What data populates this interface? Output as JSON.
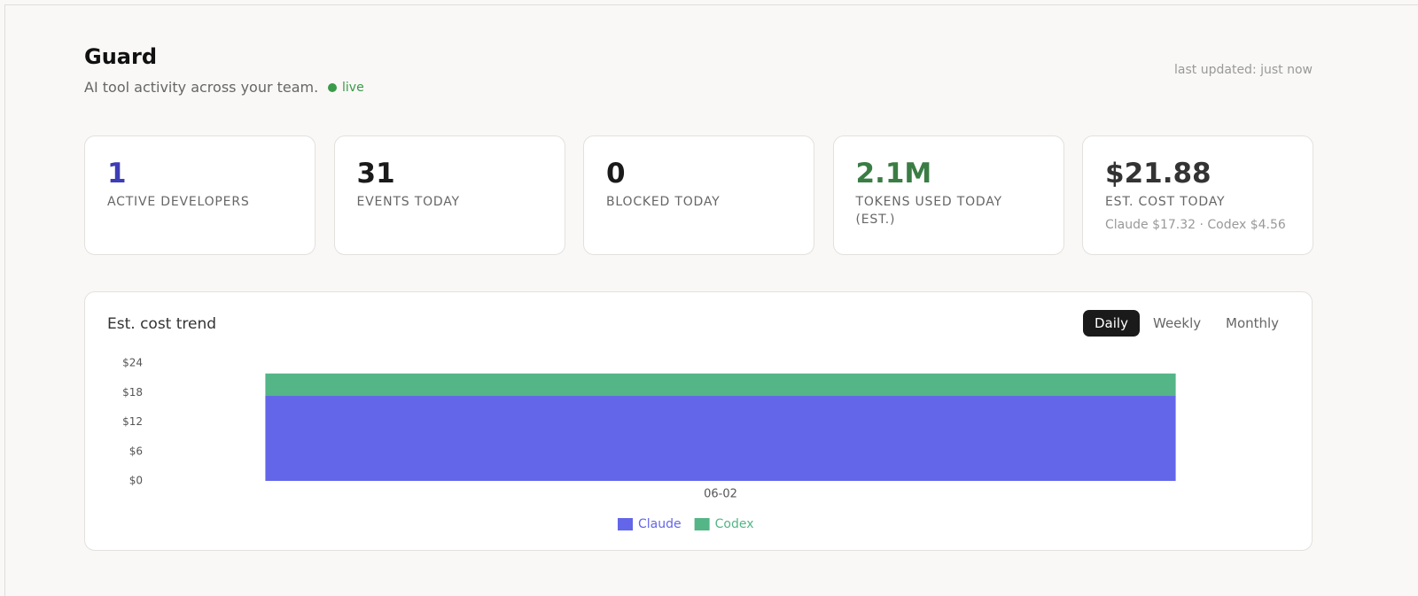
{
  "header": {
    "title": "Guard",
    "subtitle": "AI tool activity across your team.",
    "status": "live",
    "updated": "last updated: just now"
  },
  "stats": [
    {
      "value": 1,
      "label": "ACTIVE DEVELOPERS",
      "color": "#3d3db5"
    },
    {
      "value": 31,
      "label": "EVENTS TODAY",
      "color": "#1a1a1a"
    },
    {
      "value": 0,
      "label": "BLOCKED TODAY",
      "color": "#1a1a1a"
    },
    {
      "value": "2.1M",
      "label": "TOKENS USED TODAY (EST.)",
      "color": "#3a7d44"
    },
    {
      "value": "$21.88",
      "label": "EST. COST TODAY",
      "detail": "Claude $17.32 · Codex $4.56",
      "color": "#333333"
    }
  ],
  "periods": [
    "Daily",
    "Weekly",
    "Monthly"
  ],
  "chart_data": {
    "type": "stacked-bar",
    "title": "Est. cost trend",
    "categories": [
      "06-02"
    ],
    "series": [
      {
        "name": "Claude",
        "color": "#6366e8",
        "values": [
          17.32
        ]
      },
      {
        "name": "Codex",
        "color": "#54b586",
        "values": [
          4.56
        ]
      }
    ],
    "ylim": [
      0,
      24
    ],
    "yticks": [
      {
        "value": 0,
        "label": "$0"
      },
      {
        "value": 6,
        "label": "$6"
      },
      {
        "value": 12,
        "label": "$12"
      },
      {
        "value": 18,
        "label": "$18"
      },
      {
        "value": 24,
        "label": "$24"
      }
    ],
    "grid": false
  }
}
